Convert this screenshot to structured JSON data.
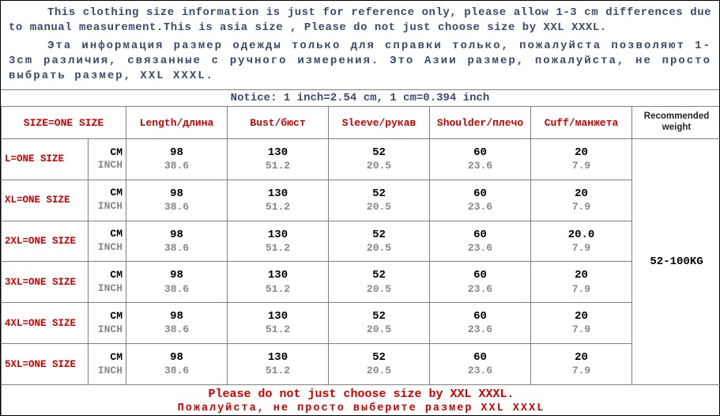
{
  "intro": {
    "en": "This clothing size information is just for reference only, please allow 1-3 cm differences due to manual measurement.This is asia size , Please do not just choose size by XXL XXXL.",
    "ru": "Эта информация размер одежды только для справки только, пожалуйста позволяют 1-3cm различия, связанные с ручного измерения. Это Азии размер, пожалуйста, не просто выбрать размер, XXL XXXL."
  },
  "notice": "Notice: 1 inch=2.54 cm, 1 cm=0.394 inch",
  "headers": {
    "size": "SIZE=ONE SIZE",
    "length": "Length/длина",
    "bust": "Bust/бюст",
    "sleeve": "Sleeve/рукав",
    "shoulder": "Shoulder/плечо",
    "cuff": "Cuff/манжета",
    "weight": "Recommended weight"
  },
  "units": {
    "cm": "CM",
    "inch": "INCH"
  },
  "rows": [
    {
      "label": "L=ONE SIZE",
      "length_cm": "98",
      "length_in": "38.6",
      "bust_cm": "130",
      "bust_in": "51.2",
      "sleeve_cm": "52",
      "sleeve_in": "20.5",
      "shoulder_cm": "60",
      "shoulder_in": "23.6",
      "cuff_cm": "20",
      "cuff_in": "7.9"
    },
    {
      "label": "XL=ONE SIZE",
      "length_cm": "98",
      "length_in": "38.6",
      "bust_cm": "130",
      "bust_in": "51.2",
      "sleeve_cm": "52",
      "sleeve_in": "20.5",
      "shoulder_cm": "60",
      "shoulder_in": "23.6",
      "cuff_cm": "20",
      "cuff_in": "7.9"
    },
    {
      "label": "2XL=ONE SIZE",
      "length_cm": "98",
      "length_in": "38.6",
      "bust_cm": "130",
      "bust_in": "51.2",
      "sleeve_cm": "52",
      "sleeve_in": "20.5",
      "shoulder_cm": "60",
      "shoulder_in": "23.6",
      "cuff_cm": "20.0",
      "cuff_in": "7.9"
    },
    {
      "label": "3XL=ONE SIZE",
      "length_cm": "98",
      "length_in": "38.6",
      "bust_cm": "130",
      "bust_in": "51.2",
      "sleeve_cm": "52",
      "sleeve_in": "20.5",
      "shoulder_cm": "60",
      "shoulder_in": "23.6",
      "cuff_cm": "20",
      "cuff_in": "7.9"
    },
    {
      "label": "4XL=ONE SIZE",
      "length_cm": "98",
      "length_in": "38.6",
      "bust_cm": "130",
      "bust_in": "51.2",
      "sleeve_cm": "52",
      "sleeve_in": "20.5",
      "shoulder_cm": "60",
      "shoulder_in": "23.6",
      "cuff_cm": "20",
      "cuff_in": "7.9"
    },
    {
      "label": "5XL=ONE SIZE",
      "length_cm": "98",
      "length_in": "38.6",
      "bust_cm": "130",
      "bust_in": "51.2",
      "sleeve_cm": "52",
      "sleeve_in": "20.5",
      "shoulder_cm": "60",
      "shoulder_in": "23.6",
      "cuff_cm": "20",
      "cuff_in": "7.9"
    }
  ],
  "weight_value": "52-100KG",
  "footer": {
    "en": "Please do not just choose size by XXL XXXL.",
    "ru": "Пожалуйста, не просто выберите размер XXL XXXL"
  },
  "colwidths": {
    "size": "110px",
    "unit": "48px",
    "col": "128px",
    "weight": "113px"
  },
  "colors": {
    "text_blue": "#3a4a6b",
    "red": "#cc0000",
    "gray": "#888888",
    "border": "#808080"
  }
}
